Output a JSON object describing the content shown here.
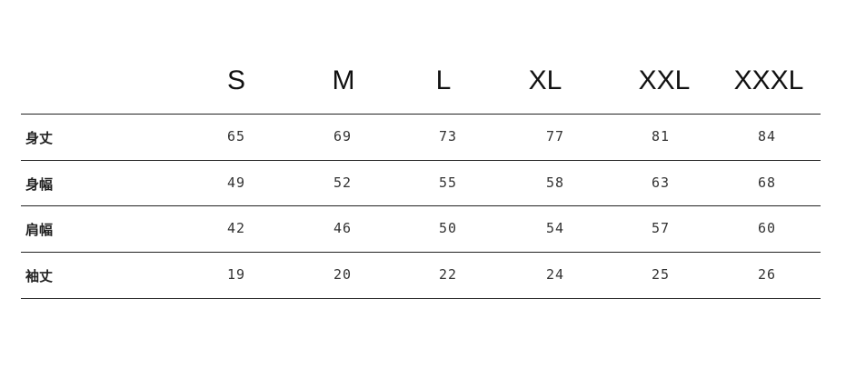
{
  "table": {
    "columns": [
      "S",
      "M",
      "L",
      "XL",
      "XXL",
      "XXXL"
    ],
    "rows": [
      {
        "label": "身丈",
        "values": [
          "65",
          "69",
          "73",
          "77",
          "81",
          "84"
        ]
      },
      {
        "label": "身幅",
        "values": [
          "49",
          "52",
          "55",
          "58",
          "63",
          "68"
        ]
      },
      {
        "label": "肩幅",
        "values": [
          "42",
          "46",
          "50",
          "54",
          "57",
          "60"
        ]
      },
      {
        "label": "袖丈",
        "values": [
          "19",
          "20",
          "22",
          "24",
          "25",
          "26"
        ]
      }
    ]
  }
}
